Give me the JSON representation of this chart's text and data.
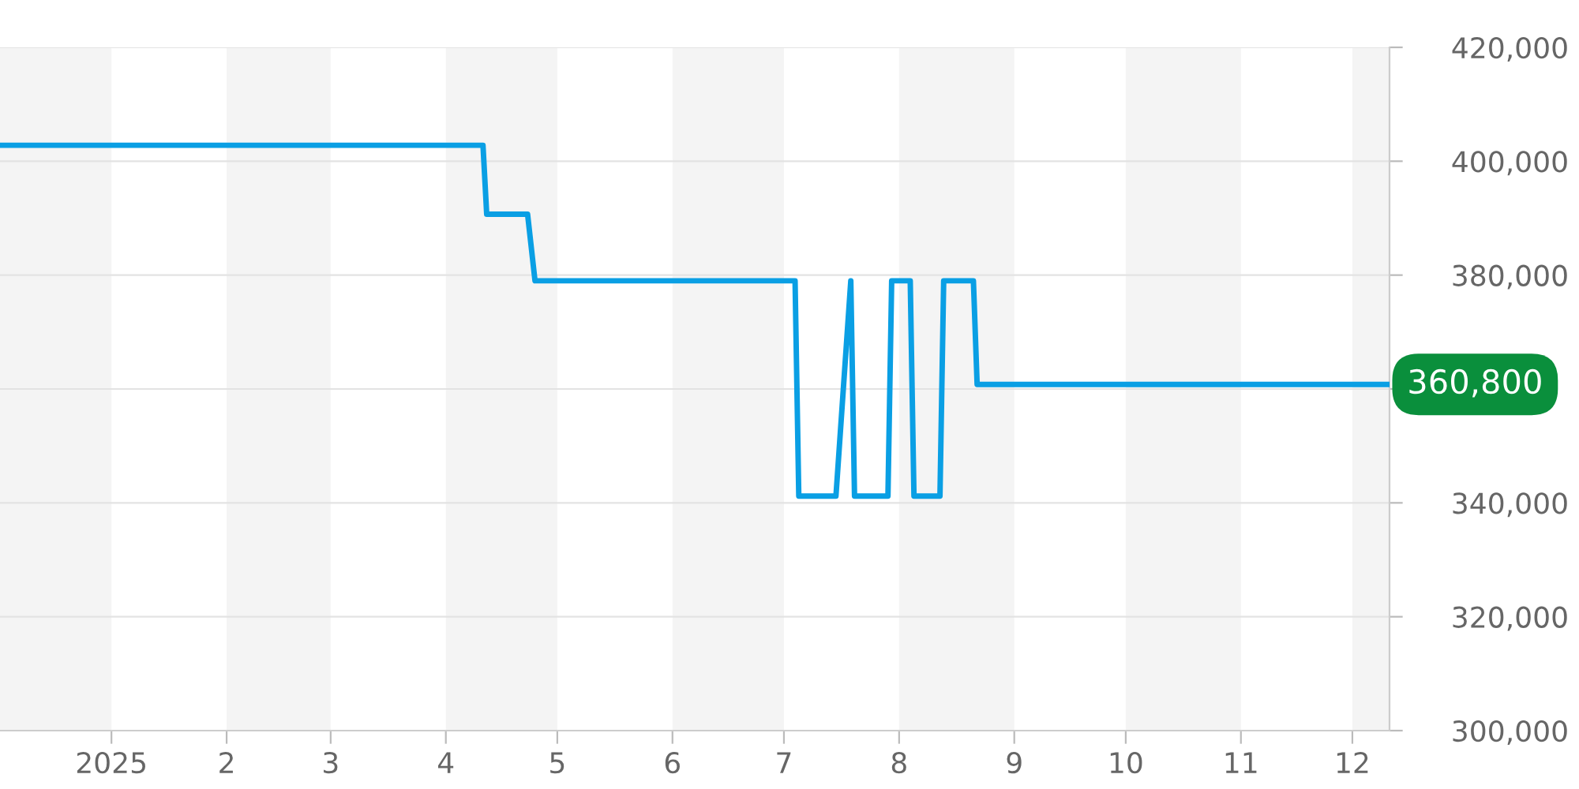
{
  "chart_data": {
    "type": "line",
    "x": [
      "2024-12-02",
      "2025-04-11",
      "2025-04-12",
      "2025-04-23",
      "2025-04-25",
      "2025-07-04",
      "2025-07-05",
      "2025-07-15",
      "2025-07-19",
      "2025-07-20",
      "2025-07-29",
      "2025-07-30",
      "2025-08-04",
      "2025-08-05",
      "2025-08-12",
      "2025-08-13",
      "2025-08-21",
      "2025-08-22",
      "2025-12-11"
    ],
    "series": [
      {
        "color": "#0a9fe4",
        "values": [
          402800,
          402800,
          390700,
          390700,
          379000,
          379000,
          341200,
          341200,
          379000,
          341200,
          341200,
          379000,
          379000,
          341200,
          341200,
          379000,
          379000,
          360800,
          360800
        ]
      }
    ],
    "xlim": [
      "2024-12-02",
      "2025-12-11"
    ],
    "xticks": [
      {
        "value": "2025-01-01",
        "label": "2025"
      },
      {
        "value": "2025-02-01",
        "label": "2"
      },
      {
        "value": "2025-03-01",
        "label": "3"
      },
      {
        "value": "2025-04-01",
        "label": "4"
      },
      {
        "value": "2025-05-01",
        "label": "5"
      },
      {
        "value": "2025-06-01",
        "label": "6"
      },
      {
        "value": "2025-07-01",
        "label": "7"
      },
      {
        "value": "2025-08-01",
        "label": "8"
      },
      {
        "value": "2025-09-01",
        "label": "9"
      },
      {
        "value": "2025-10-01",
        "label": "10"
      },
      {
        "value": "2025-11-01",
        "label": "11"
      },
      {
        "value": "2025-12-01",
        "label": "12"
      }
    ],
    "ylim": [
      300000,
      420000
    ],
    "yticks": [
      {
        "value": 300000,
        "label": "300,000"
      },
      {
        "value": 320000,
        "label": "320,000"
      },
      {
        "value": 340000,
        "label": "340,000"
      },
      {
        "value": 360000,
        "label": null
      },
      {
        "value": 380000,
        "label": "380,000"
      },
      {
        "value": 400000,
        "label": "400,000"
      },
      {
        "value": 420000,
        "label": "420,000"
      }
    ],
    "bands": [
      {
        "axis": "x",
        "from": "2024-12-02",
        "to": "2025-01-01",
        "color": "#f4f4f4"
      },
      {
        "axis": "x",
        "from": "2025-02-01",
        "to": "2025-03-01",
        "color": "#f4f4f4"
      },
      {
        "axis": "x",
        "from": "2025-04-01",
        "to": "2025-05-01",
        "color": "#f4f4f4"
      },
      {
        "axis": "x",
        "from": "2025-06-01",
        "to": "2025-07-01",
        "color": "#f4f4f4"
      },
      {
        "axis": "x",
        "from": "2025-08-01",
        "to": "2025-09-01",
        "color": "#f4f4f4"
      },
      {
        "axis": "x",
        "from": "2025-10-01",
        "to": "2025-11-01",
        "color": "#f4f4f4"
      },
      {
        "axis": "x",
        "from": "2025-12-01",
        "to": "2025-12-11",
        "color": "#f4f4f4"
      }
    ],
    "annotations": [
      {
        "text": "360,800",
        "x": "2025-12-11",
        "y": 360800
      }
    ],
    "grid": "y",
    "marker": "none",
    "line_style": "solid"
  }
}
